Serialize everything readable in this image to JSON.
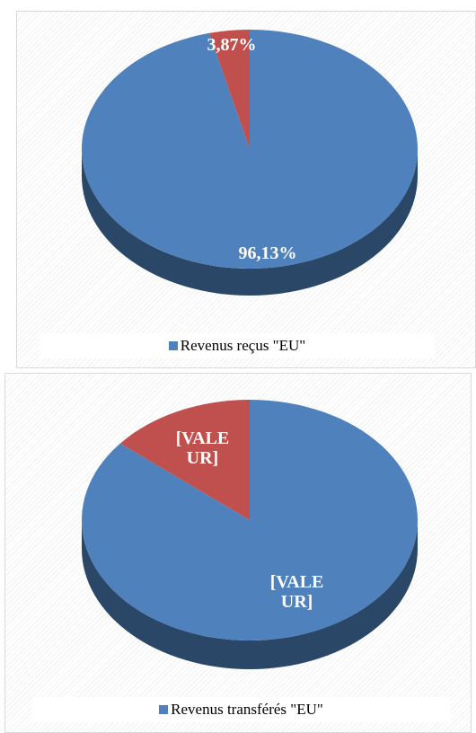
{
  "chart_data": [
    {
      "type": "pie",
      "categories": [
        "Revenus reçus \"EU\"",
        null
      ],
      "values": [
        96.13,
        3.87
      ],
      "value_labels": [
        "96,13%",
        "3,87%"
      ],
      "colors": [
        "#4f81bd",
        "#c0504d"
      ]
    },
    {
      "type": "pie",
      "categories": [
        "Revenus transférés \"EU\"",
        null
      ],
      "values": [
        86,
        14
      ],
      "value_labels": [
        "[VALEUR]",
        "[VALEUR]"
      ],
      "colors": [
        "#4f81bd",
        "#c0504d"
      ]
    }
  ]
}
